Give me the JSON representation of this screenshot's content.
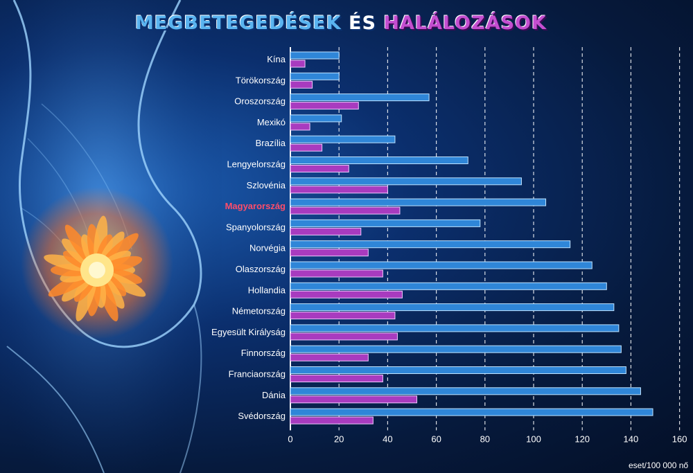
{
  "title": {
    "part1": "MEGBETEGEDÉSEK",
    "part2": "ÉS",
    "part3": "HALÁLOZÁSOK"
  },
  "colors": {
    "incidence": "#2f86d8",
    "mortality": "#a83bbf",
    "highlight": "#ff4d6a"
  },
  "chart_data": {
    "type": "bar",
    "orientation": "horizontal",
    "categories": [
      "Kína",
      "Törökország",
      "Oroszország",
      "Mexikó",
      "Brazília",
      "Lengyelország",
      "Szlovénia",
      "Magyarország",
      "Spanyolország",
      "Norvégia",
      "Olaszország",
      "Hollandia",
      "Németország",
      "Egyesült Királyság",
      "Finnország",
      "Franciaország",
      "Dánia",
      "Svédország"
    ],
    "highlight_category": "Magyarország",
    "series": [
      {
        "values": [
          20,
          20,
          57,
          21,
          43,
          73,
          95,
          105,
          78,
          115,
          124,
          130,
          133,
          135,
          136,
          138,
          144,
          149
        ]
      },
      {
        "values": [
          6,
          9,
          28,
          8,
          13,
          24,
          40,
          45,
          29,
          32,
          38,
          46,
          43,
          44,
          32,
          38,
          52,
          34
        ]
      }
    ],
    "x_ticks": [
      0,
      20,
      40,
      60,
      80,
      100,
      120,
      140,
      160
    ],
    "xlim": [
      0,
      160
    ],
    "xlabel": "eset/100 000 nő",
    "grid": "vertical dashed"
  }
}
